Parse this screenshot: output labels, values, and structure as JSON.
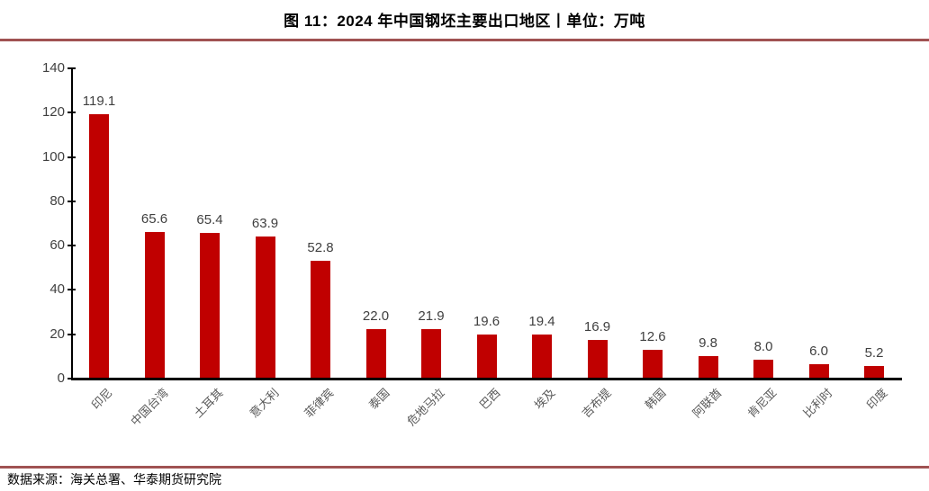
{
  "header": {
    "title": "图 11：2024 年中国钢坯主要出口地区丨单位：万吨"
  },
  "footer": {
    "source": "数据来源：海关总署、华泰期货研究院"
  },
  "colors": {
    "bar": "#c00000",
    "divider": "#a05252",
    "axis": "#000000",
    "value_label": "#404040",
    "tick_label": "#404040",
    "category_label": "#595959"
  },
  "chart_data": {
    "type": "bar",
    "title": "图 11：2024 年中国钢坯主要出口地区丨单位：万吨",
    "unit": "万吨",
    "categories": [
      "印尼",
      "中国台湾",
      "土耳其",
      "意大利",
      "菲律宾",
      "泰国",
      "危地马拉",
      "巴西",
      "埃及",
      "吉布提",
      "韩国",
      "阿联酋",
      "肯尼亚",
      "比利时",
      "印度"
    ],
    "values": [
      119.1,
      65.6,
      65.4,
      63.9,
      52.8,
      22.0,
      21.9,
      19.6,
      19.4,
      16.9,
      12.6,
      9.8,
      8.0,
      6.0,
      5.2
    ],
    "value_labels": [
      "119.1",
      "65.6",
      "65.4",
      "63.9",
      "52.8",
      "22.0",
      "21.9",
      "19.6",
      "19.4",
      "16.9",
      "12.6",
      "9.8",
      "8.0",
      "6.0",
      "5.2"
    ],
    "xlabel": "",
    "ylabel": "",
    "ylim": [
      0,
      140
    ],
    "yticks": [
      0,
      20,
      40,
      60,
      80,
      100,
      120,
      140
    ],
    "grid": false,
    "legend": false,
    "data_labels_shown": true,
    "source": "数据来源：海关总署、华泰期货研究院"
  }
}
